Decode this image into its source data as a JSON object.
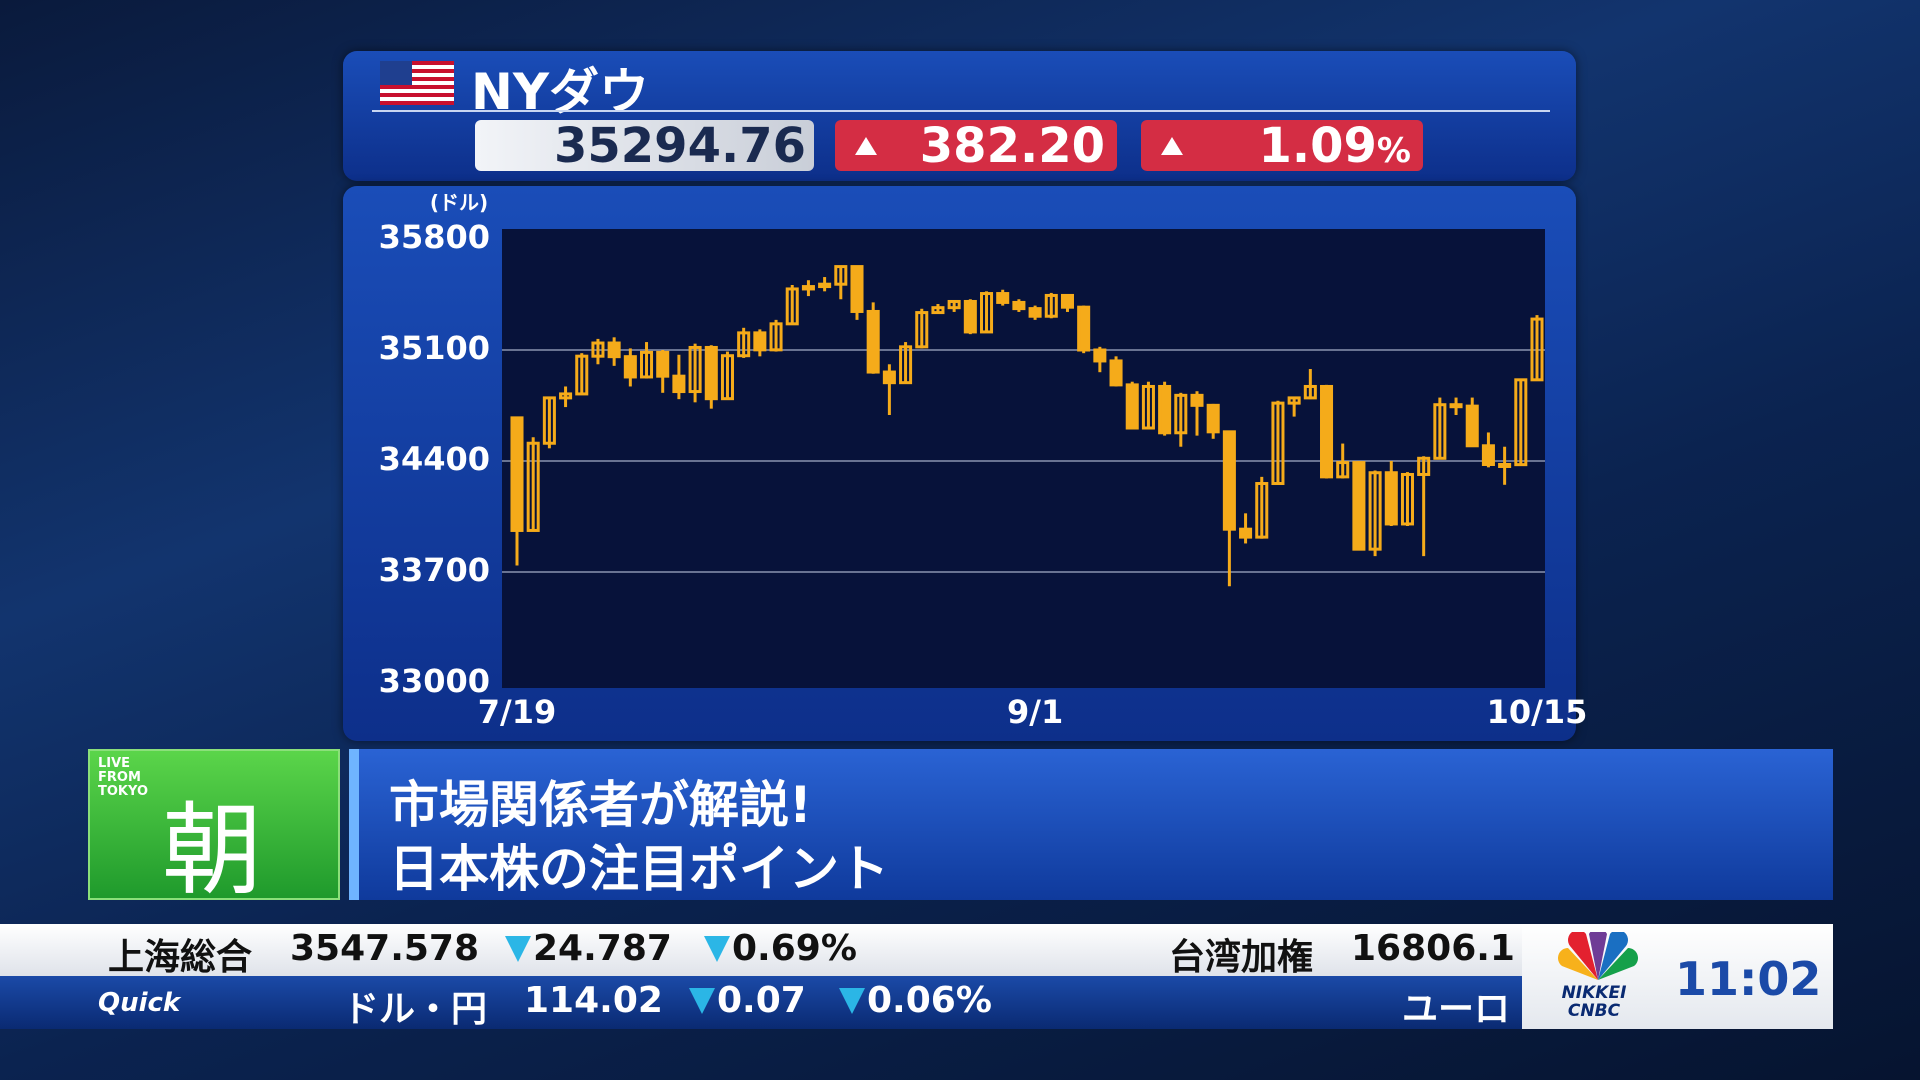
{
  "header": {
    "title": "NYダウ",
    "price": "35294.76",
    "change": "382.20",
    "change_pct": "1.09",
    "pct_unit": "%"
  },
  "chart_data": {
    "type": "candlestick",
    "unit": "(ドル)",
    "color": "#f5ab1a",
    "categories": [
      "7/19",
      null,
      null,
      null,
      null,
      null,
      null,
      null,
      null,
      null,
      null,
      null,
      null,
      null,
      null,
      null,
      null,
      null,
      null,
      null,
      null,
      null,
      null,
      null,
      null,
      null,
      null,
      null,
      null,
      null,
      null,
      null,
      "9/1",
      null,
      null,
      null,
      null,
      null,
      null,
      null,
      null,
      null,
      null,
      null,
      null,
      null,
      null,
      null,
      null,
      null,
      null,
      null,
      null,
      null,
      null,
      null,
      null,
      null,
      null,
      null,
      null,
      null,
      null,
      "10/15"
    ],
    "open": [
      34672,
      33962,
      34512,
      34798,
      34823,
      35061,
      35144,
      35058,
      34930,
      35085,
      34935,
      34838,
      35116,
      34793,
      35064,
      35208,
      35101,
      35265,
      35485,
      35500,
      35515,
      35626,
      35343,
      34961,
      34894,
      35120,
      35336,
      35367,
      35406,
      35214,
      35456,
      35400,
      35361,
      35313,
      35444,
      35370,
      35100,
      35031,
      34880,
      34608,
      34870,
      34578,
      34814,
      34751,
      34584,
      33970,
      33920,
      34258,
      34765,
      34798,
      34870,
      34300,
      34390,
      33844,
      34326,
      34003,
      34315,
      34417,
      34755,
      34746,
      34496,
      34378,
      34377,
      34912
    ],
    "high": [
      34679,
      34550,
      34800,
      34870,
      35080,
      35170,
      35180,
      35110,
      35150,
      35100,
      35070,
      35140,
      35130,
      35090,
      35240,
      35230,
      35290,
      35510,
      35540,
      35560,
      35630,
      35630,
      35400,
      35010,
      35150,
      35360,
      35390,
      35410,
      35420,
      35470,
      35480,
      35420,
      35380,
      35460,
      35450,
      35380,
      35120,
      35060,
      34900,
      34900,
      34900,
      34830,
      34840,
      34760,
      34590,
      34070,
      34300,
      34780,
      34800,
      34980,
      34880,
      34510,
      34400,
      34340,
      34400,
      34330,
      34430,
      34800,
      34800,
      34800,
      34580,
      34490,
      34920,
      35320
    ],
    "low": [
      33741,
      33960,
      34480,
      34740,
      34820,
      35010,
      35000,
      34870,
      34920,
      34830,
      34790,
      34770,
      34730,
      34790,
      35050,
      35060,
      35090,
      35260,
      35440,
      35470,
      35420,
      35290,
      34950,
      34690,
      34890,
      35110,
      35330,
      35340,
      35200,
      35210,
      35380,
      35340,
      35290,
      35300,
      35340,
      35080,
      34960,
      34870,
      34600,
      34600,
      34560,
      34490,
      34560,
      34540,
      33610,
      33880,
      33910,
      34250,
      34680,
      34790,
      34290,
      34290,
      33840,
      33800,
      33990,
      33990,
      33800,
      34410,
      34690,
      34490,
      34360,
      34250,
      34370,
      34910
    ],
    "close": [
      33962,
      34512,
      34798,
      34823,
      35061,
      35144,
      35058,
      34930,
      35085,
      34935,
      34838,
      35116,
      34793,
      35064,
      35208,
      35101,
      35265,
      35485,
      35500,
      35515,
      35626,
      35343,
      34961,
      34894,
      35120,
      35336,
      35367,
      35406,
      35214,
      35456,
      35400,
      35361,
      35313,
      35444,
      35370,
      35100,
      35031,
      34880,
      34608,
      34870,
      34578,
      34814,
      34751,
      34584,
      33970,
      33920,
      34258,
      34765,
      34798,
      34870,
      34300,
      34390,
      33844,
      34326,
      34003,
      34315,
      34417,
      34755,
      34746,
      34496,
      34378,
      34377,
      34912,
      35295
    ],
    "ylim": [
      33000,
      35800
    ],
    "yticks": [
      33000,
      33700,
      34400,
      35100,
      35800
    ],
    "grid": true
  },
  "banner": {
    "live": "LIVE FROM TOKYO",
    "show": "朝",
    "line1": "市場関係者が解説!",
    "line2": "日本株の注目ポイント"
  },
  "ticker": {
    "row1": {
      "name1": "上海総合",
      "value1": "3547.578",
      "change1": "24.787",
      "pct1": "0.69%",
      "name2": "台湾加権",
      "value2": "16806.1"
    },
    "row2": {
      "source": "Quick",
      "name1": "ドル・円",
      "value1": "114.02",
      "change1": "0.07",
      "pct1": "0.06%",
      "name2": "ユーロ"
    }
  },
  "logo": "NIKKEI CNBC",
  "clock": "11:02"
}
